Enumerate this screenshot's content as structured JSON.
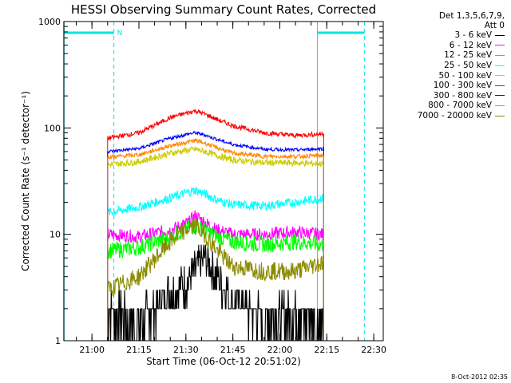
{
  "chart_data": {
    "type": "line",
    "title": "HESSI Observing Summary Count Rates, Corrected",
    "xlabel": "Start Time (06-Oct-12 20:51:02)",
    "ylabel": "Corrected Count Rate (s⁻¹ detector⁻¹)",
    "y_scale": "log",
    "ylim": [
      1,
      1000
    ],
    "xlim_minutes": [
      0,
      102
    ],
    "x_ticks": [
      "21:00",
      "21:15",
      "21:30",
      "21:45",
      "22:00",
      "22:15",
      "22:30"
    ],
    "y_ticks": [
      "1",
      "10",
      "100",
      "1000"
    ],
    "grid": false,
    "legend_position": "right",
    "legend_header": [
      "Det 1,3,5,6,7,9,",
      "Att 0"
    ],
    "markers": {
      "night_flag": "N",
      "night_color": "#00e5e5"
    },
    "x_range_observed": [
      "21:03",
      "22:14"
    ],
    "series": [
      {
        "name": "3 - 6 keV",
        "color": "#000000",
        "values": [
          [
            21.05,
            2
          ],
          [
            21.15,
            1.5
          ],
          [
            21.25,
            2.8
          ],
          [
            21.31,
            3.6
          ],
          [
            21.33,
            4.5
          ],
          [
            21.36,
            6
          ],
          [
            21.4,
            4
          ],
          [
            21.45,
            2.4
          ],
          [
            21.55,
            1.6
          ],
          [
            22.05,
            1.8
          ],
          [
            22.14,
            1.5
          ]
        ]
      },
      {
        "name": "6 - 12 keV",
        "color": "#ff00ff",
        "values": [
          [
            21.05,
            10
          ],
          [
            21.15,
            9.5
          ],
          [
            21.25,
            11
          ],
          [
            21.31,
            13
          ],
          [
            21.33,
            15
          ],
          [
            21.36,
            13
          ],
          [
            21.4,
            11
          ],
          [
            21.45,
            10
          ],
          [
            21.55,
            10
          ],
          [
            22.05,
            10.5
          ],
          [
            22.14,
            10
          ]
        ]
      },
      {
        "name": "12 - 25 keV",
        "color": "#00ff00",
        "values": [
          [
            21.05,
            7
          ],
          [
            21.15,
            7.5
          ],
          [
            21.25,
            9.5
          ],
          [
            21.31,
            11.5
          ],
          [
            21.33,
            12
          ],
          [
            21.36,
            11
          ],
          [
            21.4,
            9.5
          ],
          [
            21.45,
            8.5
          ],
          [
            21.55,
            8
          ],
          [
            22.05,
            8.5
          ],
          [
            22.14,
            8
          ]
        ]
      },
      {
        "name": "25 - 50 keV",
        "color": "#00ffff",
        "values": [
          [
            21.05,
            16
          ],
          [
            21.15,
            18
          ],
          [
            21.25,
            22
          ],
          [
            21.31,
            25
          ],
          [
            21.33,
            26
          ],
          [
            21.36,
            24
          ],
          [
            21.4,
            21
          ],
          [
            21.45,
            19
          ],
          [
            21.55,
            18.5
          ],
          [
            22.05,
            20
          ],
          [
            22.14,
            22
          ]
        ]
      },
      {
        "name": "50 - 100 keV",
        "color": "#cccc00",
        "values": [
          [
            21.05,
            45
          ],
          [
            21.15,
            48
          ],
          [
            21.25,
            58
          ],
          [
            21.31,
            62
          ],
          [
            21.33,
            63
          ],
          [
            21.36,
            60
          ],
          [
            21.4,
            55
          ],
          [
            21.45,
            50
          ],
          [
            21.55,
            47
          ],
          [
            22.05,
            47
          ],
          [
            22.14,
            46
          ]
        ]
      },
      {
        "name": "100 - 300 keV",
        "color": "#ff0000",
        "values": [
          [
            21.05,
            80
          ],
          [
            21.15,
            90
          ],
          [
            21.25,
            125
          ],
          [
            21.31,
            140
          ],
          [
            21.33,
            145
          ],
          [
            21.36,
            135
          ],
          [
            21.4,
            120
          ],
          [
            21.45,
            105
          ],
          [
            21.55,
            90
          ],
          [
            22.05,
            85
          ],
          [
            22.14,
            88
          ]
        ]
      },
      {
        "name": "300 - 800 keV",
        "color": "#0000ff",
        "values": [
          [
            21.05,
            60
          ],
          [
            21.15,
            64
          ],
          [
            21.25,
            80
          ],
          [
            21.31,
            88
          ],
          [
            21.33,
            90
          ],
          [
            21.36,
            86
          ],
          [
            21.4,
            78
          ],
          [
            21.45,
            70
          ],
          [
            21.55,
            63
          ],
          [
            22.05,
            62
          ],
          [
            22.14,
            64
          ]
        ]
      },
      {
        "name": "800 - 7000 keV",
        "color": "#ff8800",
        "values": [
          [
            21.05,
            53
          ],
          [
            21.15,
            56
          ],
          [
            21.25,
            68
          ],
          [
            21.31,
            74
          ],
          [
            21.33,
            76
          ],
          [
            21.36,
            72
          ],
          [
            21.4,
            65
          ],
          [
            21.45,
            58
          ],
          [
            21.55,
            54
          ],
          [
            22.05,
            54
          ],
          [
            22.14,
            55
          ]
        ]
      },
      {
        "name": "7000 - 20000 keV",
        "color": "#8b8b00",
        "values": [
          [
            21.05,
            3
          ],
          [
            21.15,
            4
          ],
          [
            21.25,
            8.5
          ],
          [
            21.31,
            11.5
          ],
          [
            21.33,
            12
          ],
          [
            21.36,
            10
          ],
          [
            21.4,
            7
          ],
          [
            21.45,
            5
          ],
          [
            21.55,
            4.5
          ],
          [
            22.05,
            4.5
          ],
          [
            22.14,
            5.5
          ]
        ]
      }
    ]
  },
  "footer": {
    "timestamp": "8-Oct-2012 02:35"
  }
}
